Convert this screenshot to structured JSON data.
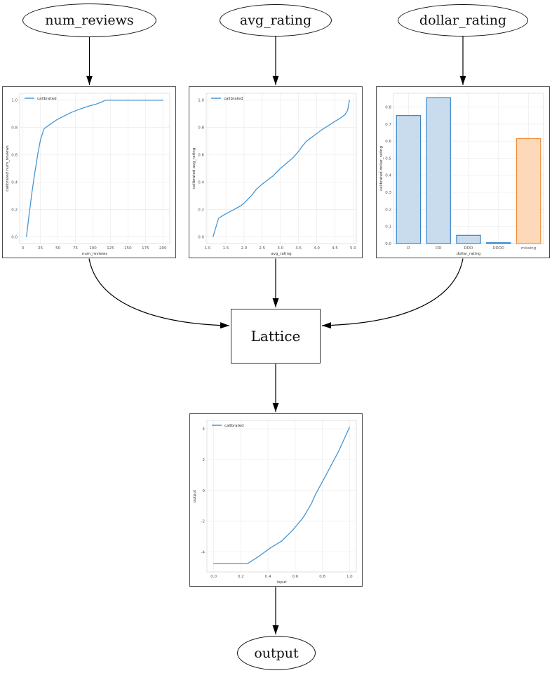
{
  "diagram": {
    "nodes": {
      "num_reviews": {
        "label": "num_reviews"
      },
      "avg_rating": {
        "label": "avg_rating"
      },
      "dollar_rating": {
        "label": "dollar_rating"
      },
      "lattice": {
        "label": "Lattice"
      },
      "output": {
        "label": "output"
      }
    },
    "edges": [
      {
        "from": "num_reviews",
        "to": "calibrator_num_reviews"
      },
      {
        "from": "avg_rating",
        "to": "calibrator_avg_rating"
      },
      {
        "from": "dollar_rating",
        "to": "calibrator_dollar_rating"
      },
      {
        "from": "calibrator_num_reviews",
        "to": "lattice"
      },
      {
        "from": "calibrator_avg_rating",
        "to": "lattice"
      },
      {
        "from": "calibrator_dollar_rating",
        "to": "lattice"
      },
      {
        "from": "lattice",
        "to": "output_calibrator"
      },
      {
        "from": "output_calibrator",
        "to": "output"
      }
    ]
  },
  "chart_data": [
    {
      "id": "calib_num_reviews",
      "type": "line",
      "title": "",
      "xlabel": "num_reviews",
      "ylabel": "calibrated num_reviews",
      "legend": [
        "calibrated"
      ],
      "legend_position": "upper left",
      "grid": true,
      "xlim": [
        -4.75,
        209.75
      ],
      "ylim": [
        -0.05,
        1.05
      ],
      "xticks": {
        "values": [
          0,
          25,
          50,
          75,
          100,
          125,
          150,
          175,
          200
        ],
        "labels": [
          "0",
          "25",
          "50",
          "75",
          "100",
          "125",
          "150",
          "175",
          "200"
        ]
      },
      "yticks": {
        "values": [
          0.0,
          0.2,
          0.4,
          0.6,
          0.8,
          1.0
        ],
        "labels": [
          "0.0",
          "0.2",
          "0.4",
          "0.6",
          "0.8",
          "1.0"
        ]
      },
      "series": [
        {
          "name": "calibrated",
          "color": "#4796d3",
          "points": [
            [
              5,
              0.0
            ],
            [
              9,
              0.17
            ],
            [
              13,
              0.33
            ],
            [
              17,
              0.47
            ],
            [
              21,
              0.6
            ],
            [
              25,
              0.71
            ],
            [
              30,
              0.79
            ],
            [
              38,
              0.82
            ],
            [
              48,
              0.855
            ],
            [
              58,
              0.882
            ],
            [
              70,
              0.912
            ],
            [
              82,
              0.936
            ],
            [
              95,
              0.958
            ],
            [
              105,
              0.972
            ],
            [
              112,
              0.985
            ],
            [
              118,
              1.0
            ],
            [
              200,
              1.0
            ]
          ]
        }
      ]
    },
    {
      "id": "calib_avg_rating",
      "type": "line",
      "title": "",
      "xlabel": "avg_rating",
      "ylabel": "calibrated avg_rating",
      "legend": [
        "calibrated"
      ],
      "legend_position": "upper left",
      "grid": true,
      "xlim": [
        0.96,
        5.09
      ],
      "ylim": [
        -0.05,
        1.05
      ],
      "xticks": {
        "values": [
          1.0,
          1.5,
          2.0,
          2.5,
          3.0,
          3.5,
          4.0,
          4.5,
          5.0
        ],
        "labels": [
          "1.0",
          "1.5",
          "2.0",
          "2.5",
          "3.0",
          "3.5",
          "4.0",
          "4.5",
          "5.0"
        ]
      },
      "yticks": {
        "values": [
          0.0,
          0.2,
          0.4,
          0.6,
          0.8,
          1.0
        ],
        "labels": [
          "0.0",
          "0.2",
          "0.4",
          "0.6",
          "0.8",
          "1.0"
        ]
      },
      "series": [
        {
          "name": "calibrated",
          "color": "#4796d3",
          "points": [
            [
              1.15,
              0.0
            ],
            [
              1.3,
              0.135
            ],
            [
              1.45,
              0.16
            ],
            [
              1.7,
              0.195
            ],
            [
              1.9,
              0.225
            ],
            [
              2.0,
              0.245
            ],
            [
              2.2,
              0.3
            ],
            [
              2.35,
              0.35
            ],
            [
              2.5,
              0.385
            ],
            [
              2.65,
              0.415
            ],
            [
              2.8,
              0.445
            ],
            [
              3.0,
              0.5
            ],
            [
              3.2,
              0.545
            ],
            [
              3.35,
              0.578
            ],
            [
              3.5,
              0.625
            ],
            [
              3.62,
              0.668
            ],
            [
              3.72,
              0.7
            ],
            [
              3.85,
              0.725
            ],
            [
              4.0,
              0.755
            ],
            [
              4.15,
              0.785
            ],
            [
              4.3,
              0.81
            ],
            [
              4.5,
              0.845
            ],
            [
              4.65,
              0.868
            ],
            [
              4.78,
              0.895
            ],
            [
              4.85,
              0.925
            ],
            [
              4.9,
              1.0
            ]
          ]
        }
      ]
    },
    {
      "id": "calib_dollar_rating",
      "type": "bar",
      "title": "",
      "xlabel": "dollar_rating",
      "ylabel": "calibrated dollar_rating",
      "legend": [],
      "grid": true,
      "ylim": [
        0,
        0.88
      ],
      "categories": [
        "D",
        "DD",
        "DDD",
        "DDDD",
        "missing"
      ],
      "values": [
        0.75,
        0.855,
        0.048,
        0.005,
        0.615
      ],
      "bar_fill": [
        "#c9dcee",
        "#c9dcee",
        "#c9dcee",
        "#c9dcee",
        "#fcd9b8"
      ],
      "bar_edge": [
        "#3a87c8",
        "#3a87c8",
        "#3a87c8",
        "#3a87c8",
        "#f28c38"
      ],
      "yticks": {
        "values": [
          0.0,
          0.1,
          0.2,
          0.3,
          0.4,
          0.5,
          0.6,
          0.7,
          0.8
        ],
        "labels": [
          "0.0",
          "0.1",
          "0.2",
          "0.3",
          "0.4",
          "0.5",
          "0.6",
          "0.7",
          "0.8"
        ]
      }
    },
    {
      "id": "output_calibration",
      "type": "line",
      "title": "",
      "xlabel": "input",
      "ylabel": "output",
      "legend": [
        "calibrated"
      ],
      "legend_position": "upper left",
      "grid": true,
      "xlim": [
        -0.05,
        1.05
      ],
      "ylim": [
        -5.3,
        4.55
      ],
      "xticks": {
        "values": [
          0.0,
          0.2,
          0.4,
          0.6,
          0.8,
          1.0
        ],
        "labels": [
          "0.0",
          "0.2",
          "0.4",
          "0.6",
          "0.8",
          "1.0"
        ]
      },
      "yticks": {
        "values": [
          -4,
          -2,
          0,
          2,
          4
        ],
        "labels": [
          "-4",
          "-2",
          "0",
          "2",
          "4"
        ]
      },
      "series": [
        {
          "name": "calibrated",
          "color": "#4796d3",
          "points": [
            [
              0.0,
              -4.75
            ],
            [
              0.25,
              -4.75
            ],
            [
              0.33,
              -4.3
            ],
            [
              0.42,
              -3.72
            ],
            [
              0.5,
              -3.3
            ],
            [
              0.58,
              -2.6
            ],
            [
              0.66,
              -1.75
            ],
            [
              0.72,
              -0.85
            ],
            [
              0.75,
              -0.25
            ],
            [
              0.83,
              1.05
            ],
            [
              0.92,
              2.55
            ],
            [
              1.0,
              4.1
            ]
          ]
        }
      ]
    }
  ]
}
